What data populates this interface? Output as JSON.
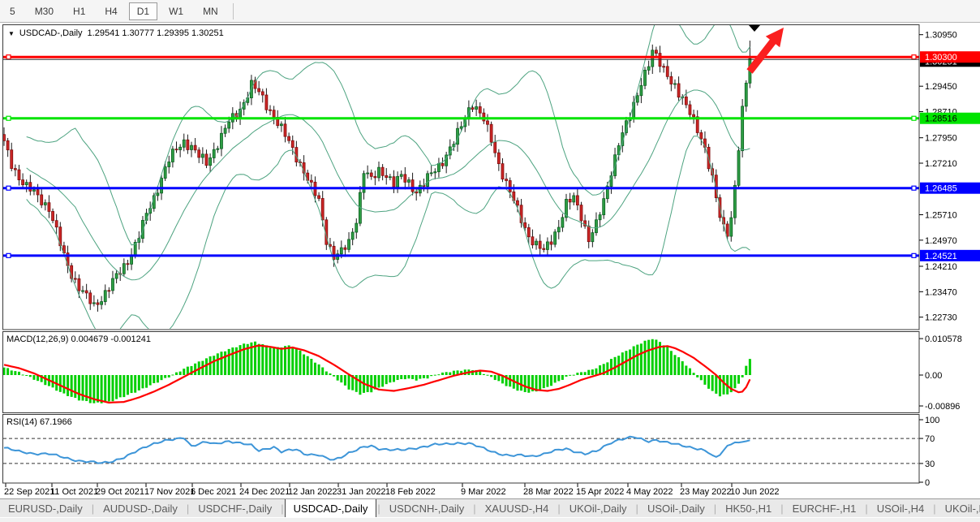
{
  "toolbar": {
    "timeframes": [
      "5",
      "M30",
      "H1",
      "H4",
      "D1",
      "W1",
      "MN"
    ],
    "active": "D1"
  },
  "chart_header": {
    "expand_icon": "▼",
    "symbol_label": "USDCAD-,Daily",
    "ohlc_text": "1.29541 1.30777 1.29395 1.30251"
  },
  "indicator_labels": {
    "macd": "MACD(12,26,9) 0.004679 -0.001241",
    "rsi": "RSI(14) 67.1966"
  },
  "tabs": {
    "items": [
      "EURUSD-,Daily",
      "AUDUSD-,Daily",
      "USDCHF-,Daily",
      "USDCAD-,Daily",
      "USDCNH-,Daily",
      "XAUUSD-,H4",
      "UKOil-,Daily",
      "USOil-,Daily",
      "HK50-,H1",
      "EURCHF-,H1",
      "USOil-,H4",
      "UKOil-,H4"
    ],
    "active": "USDCAD-,Daily",
    "scroll_left": "◂",
    "scroll_right": "▸"
  },
  "chart_data": {
    "type": "candlestick",
    "symbol": "USDCAD-",
    "timeframe": "Daily",
    "last_candle": {
      "open": 1.29541,
      "high": 1.30777,
      "low": 1.29395,
      "close": 1.30251
    },
    "num_candles": 200,
    "close_waypoints": [
      [
        0,
        1.278
      ],
      [
        2,
        1.272
      ],
      [
        4,
        1.268
      ],
      [
        6,
        1.265
      ],
      [
        8,
        1.2635
      ],
      [
        10,
        1.2615
      ],
      [
        12,
        1.259
      ],
      [
        14,
        1.252
      ],
      [
        16,
        1.245
      ],
      [
        18,
        1.24
      ],
      [
        20,
        1.236
      ],
      [
        22,
        1.233
      ],
      [
        24,
        1.2305
      ],
      [
        26,
        1.233
      ],
      [
        28,
        1.236
      ],
      [
        30,
        1.239
      ],
      [
        32,
        1.242
      ],
      [
        34,
        1.246
      ],
      [
        36,
        1.251
      ],
      [
        38,
        1.257
      ],
      [
        40,
        1.262
      ],
      [
        42,
        1.268
      ],
      [
        44,
        1.273
      ],
      [
        46,
        1.276
      ],
      [
        48,
        1.2785
      ],
      [
        50,
        1.277
      ],
      [
        52,
        1.274
      ],
      [
        54,
        1.272
      ],
      [
        56,
        1.276
      ],
      [
        58,
        1.28
      ],
      [
        60,
        1.284
      ],
      [
        62,
        1.286
      ],
      [
        64,
        1.29
      ],
      [
        66,
        1.295
      ],
      [
        68,
        1.2925
      ],
      [
        70,
        1.289
      ],
      [
        72,
        1.286
      ],
      [
        74,
        1.282
      ],
      [
        76,
        1.278
      ],
      [
        78,
        1.274
      ],
      [
        80,
        1.27
      ],
      [
        82,
        1.265
      ],
      [
        84,
        1.261
      ],
      [
        86,
        1.25
      ],
      [
        88,
        1.245
      ],
      [
        90,
        1.246
      ],
      [
        92,
        1.249
      ],
      [
        94,
        1.256
      ],
      [
        96,
        1.27
      ],
      [
        98,
        1.267
      ],
      [
        100,
        1.27
      ],
      [
        102,
        1.269
      ],
      [
        104,
        1.266
      ],
      [
        106,
        1.268
      ],
      [
        108,
        1.2665
      ],
      [
        110,
        1.264
      ],
      [
        112,
        1.266
      ],
      [
        114,
        1.269
      ],
      [
        116,
        1.2715
      ],
      [
        118,
        1.2745
      ],
      [
        120,
        1.278
      ],
      [
        122,
        1.283
      ],
      [
        124,
        1.288
      ],
      [
        125,
        1.2895
      ],
      [
        126,
        1.288
      ],
      [
        128,
        1.2845
      ],
      [
        130,
        1.279
      ],
      [
        132,
        1.272
      ],
      [
        134,
        1.266
      ],
      [
        136,
        1.261
      ],
      [
        138,
        1.256
      ],
      [
        140,
        1.251
      ],
      [
        142,
        1.248
      ],
      [
        144,
        1.2465
      ],
      [
        146,
        1.25
      ],
      [
        148,
        1.254
      ],
      [
        150,
        1.26
      ],
      [
        152,
        1.262
      ],
      [
        154,
        1.257
      ],
      [
        156,
        1.25
      ],
      [
        158,
        1.254
      ],
      [
        160,
        1.261
      ],
      [
        162,
        1.27
      ],
      [
        164,
        1.278
      ],
      [
        166,
        1.283
      ],
      [
        168,
        1.289
      ],
      [
        170,
        1.296
      ],
      [
        172,
        1.301
      ],
      [
        173,
        1.304
      ],
      [
        174,
        1.303
      ],
      [
        175,
        1.301
      ],
      [
        176,
        1.2995
      ],
      [
        177,
        1.2985
      ],
      [
        178,
        1.296
      ],
      [
        179,
        1.2945
      ],
      [
        180,
        1.292
      ],
      [
        181,
        1.29
      ],
      [
        182,
        1.2885
      ],
      [
        183,
        1.287
      ],
      [
        184,
        1.285
      ],
      [
        185,
        1.2825
      ],
      [
        186,
        1.2795
      ],
      [
        187,
        1.276
      ],
      [
        188,
        1.271
      ],
      [
        189,
        1.267
      ],
      [
        190,
        1.262
      ],
      [
        191,
        1.257
      ],
      [
        192,
        1.254
      ],
      [
        193,
        1.2525
      ],
      [
        194,
        1.256
      ],
      [
        195,
        1.265
      ],
      [
        196,
        1.276
      ],
      [
        197,
        1.287
      ],
      [
        198,
        1.29541
      ],
      [
        199,
        1.30251
      ]
    ],
    "candle_style": {
      "bull_fill": "#2E9E44",
      "bull_stroke": "#0B5E20",
      "bear_fill": "#CD2626",
      "bear_stroke": "#7E0E0E",
      "wick": "#1a1a1a"
    },
    "bollinger": {
      "period": 20,
      "deviation": 2,
      "color": "#4DA380"
    },
    "hlines": [
      {
        "price": 1.303,
        "label": "1.30300",
        "color": "#FF0000",
        "badge_fg": "#FFFFFF"
      },
      {
        "price": 1.28516,
        "label": "1.28516",
        "color": "#00E400",
        "badge_fg": "#000000"
      },
      {
        "price": 1.26485,
        "label": "1.26485",
        "color": "#0000FF",
        "badge_fg": "#FFFFFF"
      },
      {
        "price": 1.24521,
        "label": "1.24521",
        "color": "#0000FF",
        "badge_fg": "#FFFFFF"
      }
    ],
    "current_price": {
      "value": 1.30251,
      "label": "1.30251",
      "bg": "#000000",
      "fg": "#FFFFFF",
      "line_color": "#2a2a2a"
    },
    "y_axis": {
      "ticks": [
        "1.30950",
        "1.29450",
        "1.28710",
        "1.27950",
        "1.27210",
        "1.25710",
        "1.24970",
        "1.24210",
        "1.23470",
        "1.22730"
      ]
    },
    "x_axis": {
      "dates": [
        "22 Sep 2021",
        "11 Oct 2021",
        "29 Oct 2021",
        "17 Nov 2021",
        "6 Dec 2021",
        "24 Dec 2021",
        "12 Jan 2022",
        "31 Jan 2022",
        "18 Feb 2022",
        "9 Mar 2022",
        "28 Mar 2022",
        "15 Apr 2022",
        "4 May 2022",
        "23 May 2022",
        "10 Jun 2022"
      ],
      "positions": [
        5,
        62,
        118,
        178,
        235,
        295,
        355,
        415,
        475,
        568,
        645,
        710,
        772,
        838,
        900
      ]
    },
    "macd": {
      "params": "12,26,9",
      "main_value": 0.004679,
      "signal_value": -0.001241,
      "hist_color": "#00CF00",
      "signal_color": "#FF0000",
      "y_ticks": [
        {
          "label": "0.010578",
          "v": 0.010578
        },
        {
          "label": "0.00",
          "v": 0
        },
        {
          "label": "-0.00896",
          "v": -0.00896
        }
      ],
      "hist_waypoints": [
        [
          0,
          0.0022
        ],
        [
          4,
          0.0008
        ],
        [
          8,
          -0.0012
        ],
        [
          12,
          -0.0032
        ],
        [
          16,
          -0.0055
        ],
        [
          20,
          -0.0072
        ],
        [
          24,
          -0.0082
        ],
        [
          28,
          -0.0078
        ],
        [
          32,
          -0.0062
        ],
        [
          36,
          -0.0045
        ],
        [
          40,
          -0.0025
        ],
        [
          44,
          -0.0005
        ],
        [
          48,
          0.0018
        ],
        [
          52,
          0.0038
        ],
        [
          56,
          0.0058
        ],
        [
          60,
          0.0075
        ],
        [
          64,
          0.009
        ],
        [
          67,
          0.0096
        ],
        [
          70,
          0.0085
        ],
        [
          72,
          0.0078
        ],
        [
          74,
          0.0082
        ],
        [
          76,
          0.0085
        ],
        [
          78,
          0.0078
        ],
        [
          80,
          0.0062
        ],
        [
          84,
          0.003
        ],
        [
          88,
          -0.0005
        ],
        [
          92,
          -0.004
        ],
        [
          95,
          -0.0055
        ],
        [
          98,
          -0.0048
        ],
        [
          101,
          -0.0032
        ],
        [
          104,
          -0.0018
        ],
        [
          107,
          -0.001
        ],
        [
          110,
          -0.0014
        ],
        [
          113,
          -0.0008
        ],
        [
          116,
          0.0004
        ],
        [
          119,
          0.001
        ],
        [
          122,
          0.0014
        ],
        [
          125,
          0.0016
        ],
        [
          127,
          0.001
        ],
        [
          130,
          -0.0006
        ],
        [
          133,
          -0.0025
        ],
        [
          136,
          -0.004
        ],
        [
          139,
          -0.005
        ],
        [
          142,
          -0.0048
        ],
        [
          145,
          -0.0035
        ],
        [
          148,
          -0.0018
        ],
        [
          151,
          0.0
        ],
        [
          154,
          0.0008
        ],
        [
          157,
          0.0016
        ],
        [
          160,
          0.0032
        ],
        [
          163,
          0.0052
        ],
        [
          166,
          0.007
        ],
        [
          169,
          0.0088
        ],
        [
          171,
          0.0098
        ],
        [
          173,
          0.0106
        ],
        [
          175,
          0.0096
        ],
        [
          177,
          0.008
        ],
        [
          179,
          0.006
        ],
        [
          181,
          0.004
        ],
        [
          183,
          0.0018
        ],
        [
          185,
          -0.0005
        ],
        [
          187,
          -0.0028
        ],
        [
          189,
          -0.0048
        ],
        [
          191,
          -0.006
        ],
        [
          193,
          -0.0056
        ],
        [
          195,
          -0.004
        ],
        [
          196,
          -0.0025
        ],
        [
          197,
          -0.0005
        ],
        [
          198,
          0.0025
        ],
        [
          199,
          0.004679
        ]
      ],
      "signal_waypoints": [
        [
          0,
          0.003
        ],
        [
          4,
          0.002
        ],
        [
          8,
          0.0005
        ],
        [
          12,
          -0.0015
        ],
        [
          16,
          -0.0035
        ],
        [
          20,
          -0.0055
        ],
        [
          24,
          -0.007
        ],
        [
          28,
          -0.008
        ],
        [
          32,
          -0.0078
        ],
        [
          36,
          -0.0065
        ],
        [
          40,
          -0.0048
        ],
        [
          44,
          -0.0028
        ],
        [
          48,
          -0.0005
        ],
        [
          52,
          0.0018
        ],
        [
          56,
          0.004
        ],
        [
          60,
          0.0058
        ],
        [
          64,
          0.0075
        ],
        [
          68,
          0.0086
        ],
        [
          71,
          0.0082
        ],
        [
          74,
          0.0076
        ],
        [
          77,
          0.008
        ],
        [
          80,
          0.0072
        ],
        [
          84,
          0.0055
        ],
        [
          88,
          0.003
        ],
        [
          92,
          0.0002
        ],
        [
          96,
          -0.0025
        ],
        [
          100,
          -0.0042
        ],
        [
          104,
          -0.0046
        ],
        [
          108,
          -0.0038
        ],
        [
          112,
          -0.0028
        ],
        [
          116,
          -0.0015
        ],
        [
          120,
          -0.0002
        ],
        [
          124,
          0.0008
        ],
        [
          127,
          0.0013
        ],
        [
          130,
          0.001
        ],
        [
          133,
          -0.0002
        ],
        [
          136,
          -0.0018
        ],
        [
          139,
          -0.0033
        ],
        [
          142,
          -0.0043
        ],
        [
          145,
          -0.0046
        ],
        [
          148,
          -0.004
        ],
        [
          151,
          -0.0028
        ],
        [
          154,
          -0.0014
        ],
        [
          157,
          -0.0004
        ],
        [
          160,
          0.0006
        ],
        [
          163,
          0.0022
        ],
        [
          166,
          0.004
        ],
        [
          169,
          0.0058
        ],
        [
          172,
          0.0072
        ],
        [
          175,
          0.0082
        ],
        [
          177,
          0.0084
        ],
        [
          179,
          0.0078
        ],
        [
          181,
          0.0068
        ],
        [
          184,
          0.005
        ],
        [
          187,
          0.0026
        ],
        [
          190,
          0.0
        ],
        [
          192,
          -0.0022
        ],
        [
          194,
          -0.004
        ],
        [
          196,
          -0.005
        ],
        [
          197,
          -0.0048
        ],
        [
          198,
          -0.0035
        ],
        [
          199,
          -0.001241
        ]
      ]
    },
    "rsi": {
      "period": 14,
      "value": 67.1966,
      "color": "#3D95D8",
      "levels": [
        70,
        30
      ],
      "y_ticks": [
        100,
        70,
        30,
        0
      ],
      "waypoints": [
        [
          0,
          55
        ],
        [
          4,
          49
        ],
        [
          8,
          46
        ],
        [
          12,
          45
        ],
        [
          16,
          40
        ],
        [
          20,
          34
        ],
        [
          23,
          32
        ],
        [
          26,
          31
        ],
        [
          29,
          34
        ],
        [
          32,
          39
        ],
        [
          34,
          45
        ],
        [
          36,
          52
        ],
        [
          38,
          58
        ],
        [
          40,
          62
        ],
        [
          43,
          66
        ],
        [
          46,
          69
        ],
        [
          48,
          72
        ],
        [
          50,
          58
        ],
        [
          52,
          61
        ],
        [
          54,
          64
        ],
        [
          56,
          61
        ],
        [
          58,
          64
        ],
        [
          60,
          66
        ],
        [
          63,
          62
        ],
        [
          66,
          59
        ],
        [
          68,
          51
        ],
        [
          70,
          54
        ],
        [
          72,
          56
        ],
        [
          74,
          48
        ],
        [
          76,
          51
        ],
        [
          78,
          53
        ],
        [
          80,
          46
        ],
        [
          82,
          44
        ],
        [
          84,
          43
        ],
        [
          86,
          38
        ],
        [
          88,
          36
        ],
        [
          90,
          41
        ],
        [
          92,
          47
        ],
        [
          94,
          51
        ],
        [
          96,
          56
        ],
        [
          98,
          58
        ],
        [
          100,
          54
        ],
        [
          103,
          52
        ],
        [
          106,
          51
        ],
        [
          109,
          54
        ],
        [
          112,
          57
        ],
        [
          115,
          60
        ],
        [
          118,
          61
        ],
        [
          121,
          63
        ],
        [
          124,
          62
        ],
        [
          126,
          58
        ],
        [
          129,
          52
        ],
        [
          132,
          46
        ],
        [
          135,
          42
        ],
        [
          138,
          43
        ],
        [
          141,
          42
        ],
        [
          144,
          45
        ],
        [
          147,
          50
        ],
        [
          150,
          54
        ],
        [
          152,
          50
        ],
        [
          155,
          45
        ],
        [
          158,
          49
        ],
        [
          160,
          57
        ],
        [
          162,
          64
        ],
        [
          164,
          68
        ],
        [
          166,
          70
        ],
        [
          168,
          72
        ],
        [
          170,
          69
        ],
        [
          172,
          66
        ],
        [
          174,
          68
        ],
        [
          176,
          64
        ],
        [
          178,
          62
        ],
        [
          180,
          60
        ],
        [
          182,
          58
        ],
        [
          184,
          55
        ],
        [
          186,
          52
        ],
        [
          188,
          47
        ],
        [
          189,
          42
        ],
        [
          190,
          39
        ],
        [
          191,
          45
        ],
        [
          192,
          52
        ],
        [
          193,
          58
        ],
        [
          194,
          62
        ],
        [
          195,
          65
        ],
        [
          196,
          62
        ],
        [
          197,
          64
        ],
        [
          198,
          66
        ],
        [
          199,
          67
        ]
      ]
    },
    "annotations": {
      "arrow_color": "#FA1F1F",
      "top_marker": "▼"
    }
  }
}
